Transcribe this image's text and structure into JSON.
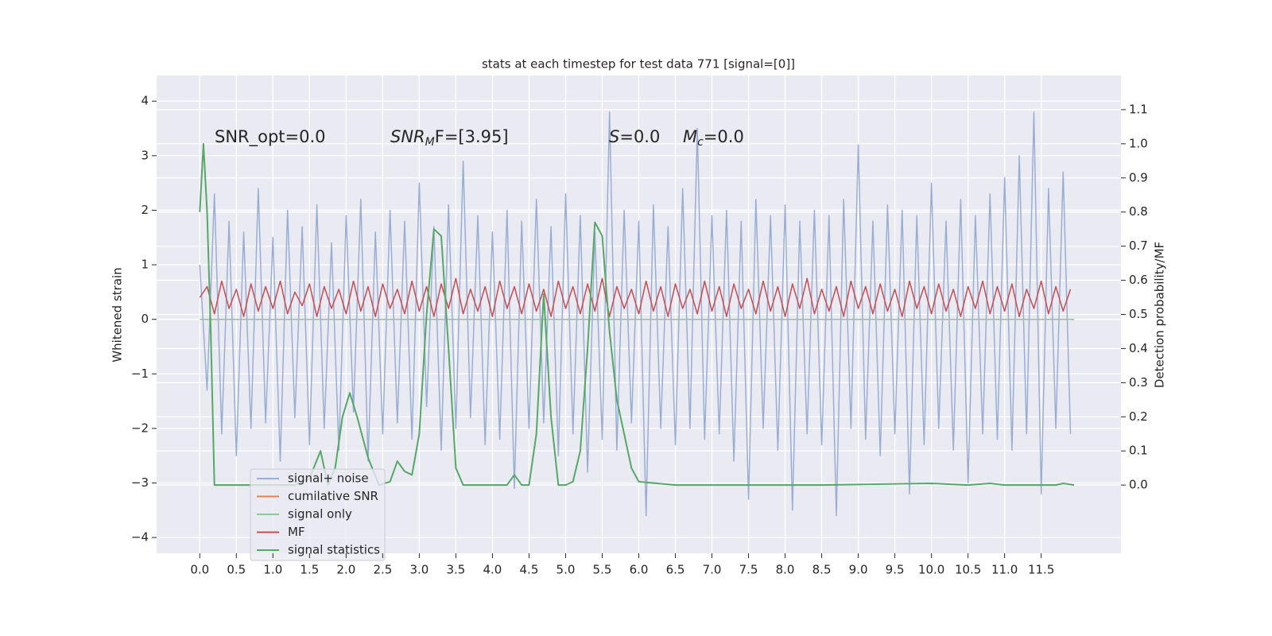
{
  "chart_data": {
    "type": "line",
    "title": "stats at each timestep for test data 771 [signal=[0]]",
    "ylabel": "Whitened strain",
    "y2label": "Detection probability/MF",
    "annotations": [
      {
        "base": "SNR_opt=0.0"
      },
      {
        "base": "SNR",
        "sub": "M",
        "rest": "F=[3.95]"
      },
      {
        "base": "S",
        "rest": "=0.0"
      },
      {
        "base": "M",
        "sub": "c",
        "rest": "=0.0"
      }
    ],
    "xlim": [
      -0.59,
      12.59
    ],
    "ylim": [
      -4.29,
      4.47
    ],
    "y2lim": [
      -0.2,
      1.2
    ],
    "grid": true,
    "legend": "lower left",
    "xticks": [
      {
        "value": 0,
        "label": "0.0"
      },
      0.5,
      {
        "value": 1,
        "label": "1.0"
      },
      1.5,
      {
        "value": 2,
        "label": "2.0"
      },
      2.5,
      {
        "value": 3,
        "label": "3.0"
      },
      3.5,
      {
        "value": 4,
        "label": "4.0"
      },
      4.5,
      {
        "value": 5,
        "label": "5.0"
      },
      5.5,
      {
        "value": 6,
        "label": "6.0"
      },
      6.5,
      {
        "value": 7,
        "label": "7.0"
      },
      7.5,
      {
        "value": 8,
        "label": "8.0"
      },
      8.5,
      {
        "value": 9,
        "label": "9.0"
      },
      9.5,
      {
        "value": 10,
        "label": "10.0"
      },
      10.5,
      {
        "value": 11,
        "label": "11.0"
      },
      11.5
    ],
    "yticks": [
      {
        "value": -4,
        "label": "−4"
      },
      {
        "value": -3,
        "label": "−3"
      },
      {
        "value": -2,
        "label": "−2"
      },
      {
        "value": -1,
        "label": "−1"
      },
      0,
      1,
      2,
      3,
      4
    ],
    "y2ticks": [
      {
        "value": 0,
        "label": "0.0"
      },
      0.1,
      0.2,
      0.3,
      0.4,
      0.5,
      0.6,
      0.7,
      0.8,
      0.9,
      {
        "value": 1,
        "label": "1.0"
      },
      1.1
    ],
    "x": [
      0.0,
      0.1,
      0.2,
      0.3,
      0.4,
      0.5,
      0.6,
      0.7,
      0.8,
      0.9,
      1.0,
      1.1,
      1.2,
      1.3,
      1.4,
      1.5,
      1.6,
      1.7,
      1.8,
      1.9,
      2.0,
      2.1,
      2.2,
      2.3,
      2.4,
      2.5,
      2.6,
      2.7,
      2.8,
      2.9,
      3.0,
      3.1,
      3.2,
      3.3,
      3.4,
      3.5,
      3.6,
      3.7,
      3.8,
      3.9,
      4.0,
      4.1,
      4.2,
      4.3,
      4.4,
      4.5,
      4.6,
      4.7,
      4.8,
      4.9,
      5.0,
      5.1,
      5.2,
      5.3,
      5.4,
      5.5,
      5.6,
      5.7,
      5.8,
      5.9,
      6.0,
      6.1,
      6.2,
      6.3,
      6.4,
      6.5,
      6.6,
      6.7,
      6.8,
      6.9,
      7.0,
      7.1,
      7.2,
      7.3,
      7.4,
      7.5,
      7.6,
      7.7,
      7.8,
      7.9,
      8.0,
      8.1,
      8.2,
      8.3,
      8.4,
      8.5,
      8.6,
      8.7,
      8.8,
      8.9,
      9.0,
      9.1,
      9.2,
      9.3,
      9.4,
      9.5,
      9.6,
      9.7,
      9.8,
      9.9,
      10.0,
      10.1,
      10.2,
      10.3,
      10.4,
      10.5,
      10.6,
      10.7,
      10.8,
      10.9,
      11.0,
      11.1,
      11.2,
      11.3,
      11.4,
      11.5,
      11.6,
      11.7,
      11.8,
      11.9
    ],
    "series": [
      {
        "name": "signal+ noise",
        "color": "#9aaed4",
        "values": [
          1.0,
          -1.3,
          2.3,
          -2.1,
          1.8,
          -2.5,
          1.6,
          -2.0,
          2.4,
          -1.9,
          1.5,
          -2.6,
          2.0,
          -1.8,
          1.7,
          -2.3,
          2.1,
          -2.0,
          1.4,
          -2.4,
          1.9,
          -1.7,
          2.2,
          -2.6,
          1.6,
          -2.1,
          2.0,
          -1.9,
          1.8,
          -2.2,
          2.5,
          -1.6,
          1.7,
          -2.4,
          2.1,
          -2.0,
          2.9,
          -1.8,
          1.9,
          -2.3,
          1.6,
          -2.2,
          2.0,
          -3.1,
          1.8,
          -2.0,
          2.2,
          -1.9,
          1.7,
          -2.5,
          2.3,
          -2.1,
          1.9,
          -2.8,
          1.6,
          -2.2,
          3.8,
          -2.4,
          2.0,
          -1.9,
          1.8,
          -3.6,
          2.1,
          -2.0,
          1.7,
          -2.3,
          2.4,
          -2.0,
          3.5,
          -2.2,
          1.9,
          -2.1,
          2.0,
          -2.6,
          1.8,
          -3.3,
          2.2,
          -2.0,
          1.9,
          -2.4,
          2.1,
          -3.5,
          1.8,
          -2.1,
          2.0,
          -2.3,
          1.9,
          -3.6,
          2.2,
          -2.0,
          3.2,
          -2.2,
          1.8,
          -2.5,
          2.1,
          -2.1,
          2.0,
          -3.2,
          1.9,
          -2.3,
          2.5,
          -2.0,
          1.8,
          -2.4,
          2.2,
          -3.0,
          1.9,
          -2.1,
          2.3,
          -2.2,
          2.6,
          -2.4,
          3.0,
          -2.1,
          3.8,
          -3.2,
          2.4,
          -2.0,
          2.7,
          -2.1
        ]
      },
      {
        "name": "cumilative SNR",
        "color": "#dd8452",
        "x": [
          0,
          11.95
        ],
        "values": [
          0,
          0
        ]
      },
      {
        "name": "signal only",
        "color": "#8fc79b",
        "x": [
          0,
          11.95
        ],
        "values": [
          0,
          0
        ]
      },
      {
        "name": "MF",
        "color": "#c44e52",
        "values": [
          0.4,
          0.6,
          0.1,
          0.7,
          0.2,
          0.55,
          0.05,
          0.65,
          0.15,
          0.6,
          0.2,
          0.7,
          0.1,
          0.5,
          0.25,
          0.65,
          0.05,
          0.6,
          0.2,
          0.55,
          0.1,
          0.7,
          0.15,
          0.6,
          0.05,
          0.65,
          0.2,
          0.55,
          0.1,
          0.7,
          0.15,
          0.6,
          0.05,
          0.65,
          0.2,
          0.75,
          0.1,
          0.55,
          0.15,
          0.6,
          0.05,
          0.7,
          0.2,
          0.6,
          0.1,
          0.65,
          0.15,
          0.55,
          0.05,
          0.7,
          0.2,
          0.6,
          0.1,
          0.65,
          0.15,
          0.75,
          0.05,
          0.6,
          0.2,
          0.55,
          0.1,
          0.7,
          0.15,
          0.6,
          0.05,
          0.65,
          0.2,
          0.55,
          0.1,
          0.7,
          0.15,
          0.6,
          0.05,
          0.65,
          0.2,
          0.55,
          0.1,
          0.7,
          0.15,
          0.6,
          0.05,
          0.65,
          0.2,
          0.75,
          0.1,
          0.55,
          0.15,
          0.6,
          0.05,
          0.7,
          0.2,
          0.6,
          0.1,
          0.65,
          0.15,
          0.55,
          0.05,
          0.7,
          0.2,
          0.6,
          0.1,
          0.65,
          0.15,
          0.55,
          0.05,
          0.6,
          0.2,
          0.7,
          0.1,
          0.6,
          0.15,
          0.65,
          0.05,
          0.55,
          0.2,
          0.7,
          0.1,
          0.6,
          0.15,
          0.55
        ]
      },
      {
        "name": "signal statistics",
        "color": "#55a868",
        "axis": "y2",
        "x": [
          0,
          0.05,
          0.1,
          0.15,
          0.2,
          0.3,
          0.5,
          0.8,
          1.0,
          1.3,
          1.5,
          1.65,
          1.75,
          1.85,
          1.95,
          2.05,
          2.15,
          2.3,
          2.45,
          2.6,
          2.7,
          2.8,
          2.9,
          3.0,
          3.1,
          3.2,
          3.3,
          3.4,
          3.5,
          3.6,
          3.8,
          4.2,
          4.3,
          4.4,
          4.5,
          4.6,
          4.7,
          4.8,
          4.9,
          5.0,
          5.1,
          5.2,
          5.3,
          5.4,
          5.5,
          5.6,
          5.7,
          5.9,
          6.0,
          6.5,
          7.0,
          7.5,
          8.5,
          10.0,
          10.5,
          10.8,
          11.0,
          11.7,
          11.8,
          11.95
        ],
        "values": [
          0.8,
          1.0,
          0.8,
          0.45,
          0.0,
          0.0,
          0.0,
          0.0,
          0.0,
          0.0,
          0.02,
          0.1,
          0.0,
          0.05,
          0.2,
          0.27,
          0.2,
          0.08,
          0.0,
          0.01,
          0.07,
          0.04,
          0.03,
          0.15,
          0.5,
          0.75,
          0.73,
          0.4,
          0.05,
          0.0,
          0.0,
          0.0,
          0.03,
          0.0,
          0.0,
          0.15,
          0.56,
          0.2,
          0.0,
          0.0,
          0.01,
          0.1,
          0.4,
          0.77,
          0.73,
          0.45,
          0.25,
          0.05,
          0.01,
          0.0,
          0.0,
          0.0,
          0.0,
          0.005,
          0.0,
          0.005,
          0.0,
          0.0,
          0.005,
          0.0
        ]
      }
    ]
  }
}
